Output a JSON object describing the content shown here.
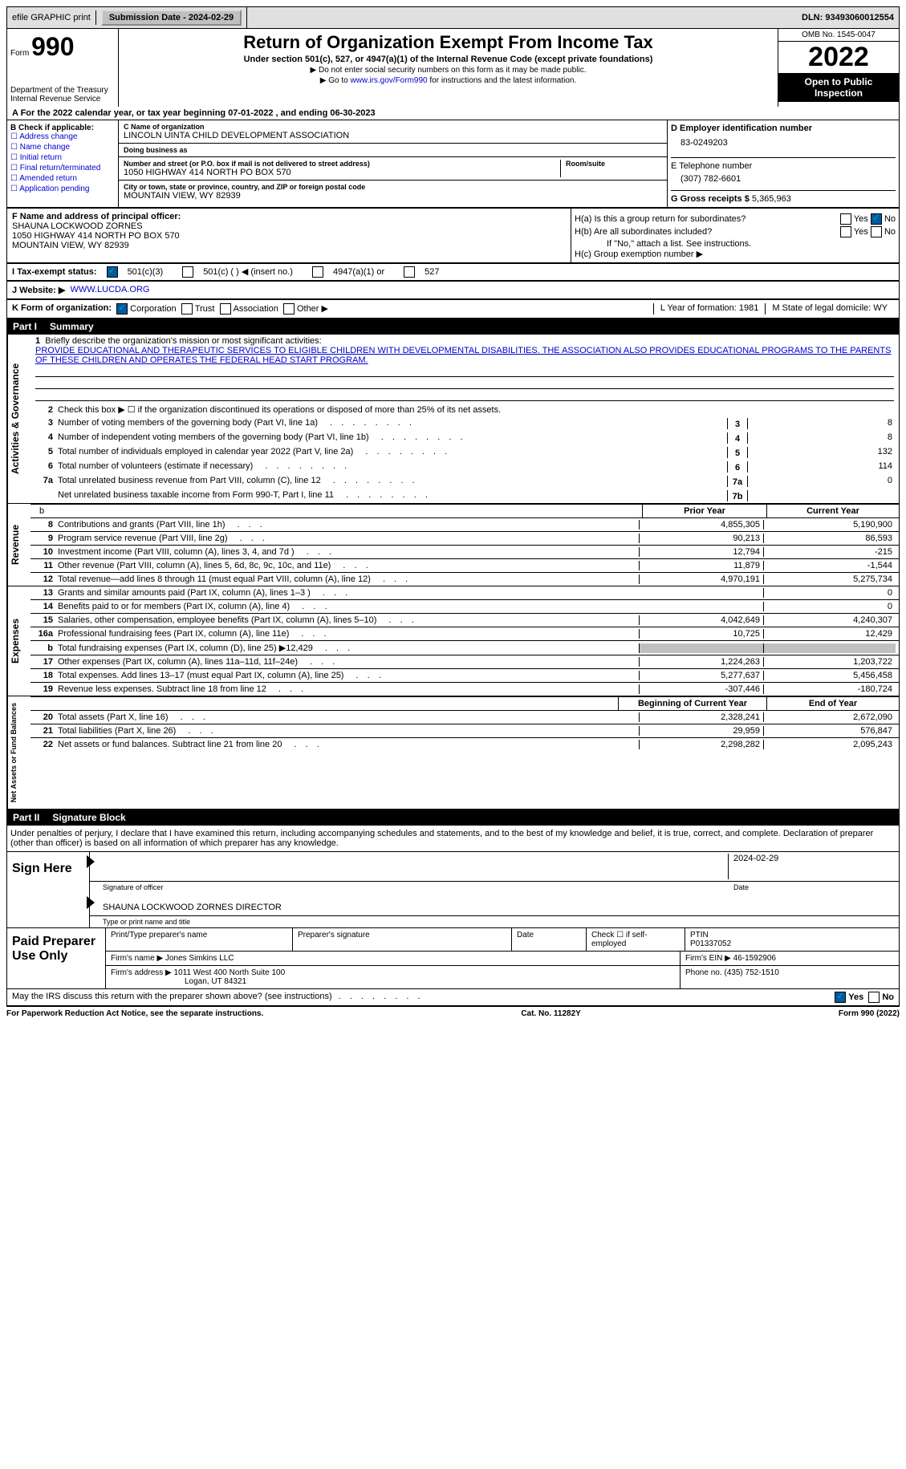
{
  "header": {
    "efile": "efile GRAPHIC print",
    "submission": "Submission Date - 2024-02-29",
    "dln": "DLN: 93493060012554"
  },
  "title": {
    "form_prefix": "Form",
    "form_num": "990",
    "main": "Return of Organization Exempt From Income Tax",
    "sub": "Under section 501(c), 527, or 4947(a)(1) of the Internal Revenue Code (except private foundations)",
    "note1": "▶ Do not enter social security numbers on this form as it may be made public.",
    "note2_pre": "▶ Go to ",
    "note2_link": "www.irs.gov/Form990",
    "note2_post": " for instructions and the latest information.",
    "dept": "Department of the Treasury Internal Revenue Service",
    "omb": "OMB No. 1545-0047",
    "year": "2022",
    "open": "Open to Public Inspection"
  },
  "periodA": "A For the 2022 calendar year, or tax year beginning 07-01-2022     , and ending 06-30-2023",
  "b": {
    "label": "B Check if applicable:",
    "items": [
      "Address change",
      "Name change",
      "Initial return",
      "Final return/terminated",
      "Amended return",
      "Application pending"
    ]
  },
  "c": {
    "name_lbl": "C Name of organization",
    "name": "LINCOLN UINTA CHILD DEVELOPMENT ASSOCIATION",
    "dba_lbl": "Doing business as",
    "addr_lbl": "Number and street (or P.O. box if mail is not delivered to street address)",
    "addr": "1050 HIGHWAY 414 NORTH PO BOX 570",
    "room_lbl": "Room/suite",
    "city_lbl": "City or town, state or province, country, and ZIP or foreign postal code",
    "city": "MOUNTAIN VIEW, WY  82939"
  },
  "d": {
    "ein_lbl": "D Employer identification number",
    "ein": "83-0249203",
    "phone_lbl": "E Telephone number",
    "phone": "(307) 782-6601",
    "gross_lbl": "G Gross receipts $",
    "gross": "5,365,963"
  },
  "f": {
    "lbl": "F Name and address of principal officer:",
    "name": "SHAUNA LOCKWOOD ZORNES",
    "addr1": "1050 HIGHWAY 414 NORTH PO BOX 570",
    "addr2": "MOUNTAIN VIEW, WY  82939"
  },
  "h": {
    "ha": "H(a)  Is this a group return for subordinates?",
    "hb": "H(b)  Are all subordinates included?",
    "hb_note": "If \"No,\" attach a list. See instructions.",
    "hc": "H(c)  Group exemption number ▶",
    "yes": "Yes",
    "no": "No"
  },
  "i": {
    "lbl": "I    Tax-exempt status:",
    "o1": "501(c)(3)",
    "o2": "501(c) (  ) ◀ (insert no.)",
    "o3": "4947(a)(1) or",
    "o4": "527"
  },
  "j": {
    "lbl": "J   Website: ▶",
    "val": "WWW.LUCDA.ORG"
  },
  "k": {
    "lbl": "K Form of organization:",
    "o1": "Corporation",
    "o2": "Trust",
    "o3": "Association",
    "o4": "Other ▶",
    "l": "L Year of formation: 1981",
    "m": "M State of legal domicile: WY"
  },
  "part1": {
    "num": "Part I",
    "title": "Summary"
  },
  "summary": {
    "l1": "Briefly describe the organization's mission or most significant activities:",
    "mission": "PROVIDE EDUCATIONAL AND THERAPEUTIC SERVICES TO ELIGIBLE CHILDREN WITH DEVELOPMENTAL DISABILITIES. THE ASSOCIATION ALSO PROVIDES EDUCATIONAL PROGRAMS TO THE PARENTS OF THESE CHILDREN AND OPERATES THE FEDERAL HEAD START PROGRAM.",
    "l2": "Check this box ▶ ☐  if the organization discontinued its operations or disposed of more than 25% of its net assets.",
    "rows_simple": [
      {
        "n": "3",
        "t": "Number of voting members of the governing body (Part VI, line 1a)",
        "box": "3",
        "v": "8"
      },
      {
        "n": "4",
        "t": "Number of independent voting members of the governing body (Part VI, line 1b)",
        "box": "4",
        "v": "8"
      },
      {
        "n": "5",
        "t": "Total number of individuals employed in calendar year 2022 (Part V, line 2a)",
        "box": "5",
        "v": "132"
      },
      {
        "n": "6",
        "t": "Total number of volunteers (estimate if necessary)",
        "box": "6",
        "v": "114"
      },
      {
        "n": "7a",
        "t": "Total unrelated business revenue from Part VIII, column (C), line 12",
        "box": "7a",
        "v": "0"
      },
      {
        "n": "",
        "t": "Net unrelated business taxable income from Form 990-T, Part I, line 11",
        "box": "7b",
        "v": ""
      }
    ],
    "prior_hdr": "Prior Year",
    "curr_hdr": "Current Year",
    "beg_hdr": "Beginning of Current Year",
    "end_hdr": "End of Year",
    "rev": [
      {
        "n": "8",
        "t": "Contributions and grants (Part VIII, line 1h)",
        "p": "4,855,305",
        "c": "5,190,900"
      },
      {
        "n": "9",
        "t": "Program service revenue (Part VIII, line 2g)",
        "p": "90,213",
        "c": "86,593"
      },
      {
        "n": "10",
        "t": "Investment income (Part VIII, column (A), lines 3, 4, and 7d )",
        "p": "12,794",
        "c": "-215"
      },
      {
        "n": "11",
        "t": "Other revenue (Part VIII, column (A), lines 5, 6d, 8c, 9c, 10c, and 11e)",
        "p": "11,879",
        "c": "-1,544"
      },
      {
        "n": "12",
        "t": "Total revenue—add lines 8 through 11 (must equal Part VIII, column (A), line 12)",
        "p": "4,970,191",
        "c": "5,275,734"
      }
    ],
    "exp": [
      {
        "n": "13",
        "t": "Grants and similar amounts paid (Part IX, column (A), lines 1–3 )",
        "p": "",
        "c": "0"
      },
      {
        "n": "14",
        "t": "Benefits paid to or for members (Part IX, column (A), line 4)",
        "p": "",
        "c": "0"
      },
      {
        "n": "15",
        "t": "Salaries, other compensation, employee benefits (Part IX, column (A), lines 5–10)",
        "p": "4,042,649",
        "c": "4,240,307"
      },
      {
        "n": "16a",
        "t": "Professional fundraising fees (Part IX, column (A), line 11e)",
        "p": "10,725",
        "c": "12,429"
      },
      {
        "n": "b",
        "t": "Total fundraising expenses (Part IX, column (D), line 25) ▶12,429",
        "p": "SHADE",
        "c": "SHADE"
      },
      {
        "n": "17",
        "t": "Other expenses (Part IX, column (A), lines 11a–11d, 11f–24e)",
        "p": "1,224,263",
        "c": "1,203,722"
      },
      {
        "n": "18",
        "t": "Total expenses. Add lines 13–17 (must equal Part IX, column (A), line 25)",
        "p": "5,277,637",
        "c": "5,456,458"
      },
      {
        "n": "19",
        "t": "Revenue less expenses. Subtract line 18 from line 12",
        "p": "-307,446",
        "c": "-180,724"
      }
    ],
    "na": [
      {
        "n": "20",
        "t": "Total assets (Part X, line 16)",
        "p": "2,328,241",
        "c": "2,672,090"
      },
      {
        "n": "21",
        "t": "Total liabilities (Part X, line 26)",
        "p": "29,959",
        "c": "576,847"
      },
      {
        "n": "22",
        "t": "Net assets or fund balances. Subtract line 21 from line 20",
        "p": "2,298,282",
        "c": "2,095,243"
      }
    ],
    "labels": {
      "ag": "Activities & Governance",
      "rev": "Revenue",
      "exp": "Expenses",
      "na": "Net Assets or Fund Balances"
    }
  },
  "part2": {
    "num": "Part II",
    "title": "Signature Block"
  },
  "sig": {
    "decl": "Under penalties of perjury, I declare that I have examined this return, including accompanying schedules and statements, and to the best of my knowledge and belief, it is true, correct, and complete. Declaration of preparer (other than officer) is based on all information of which preparer has any knowledge.",
    "sign_here": "Sign Here",
    "sig_officer": "Signature of officer",
    "date": "Date",
    "date_val": "2024-02-29",
    "name_title": "SHAUNA LOCKWOOD ZORNES  DIRECTOR",
    "type_name": "Type or print name and title"
  },
  "prep": {
    "title": "Paid Preparer Use Only",
    "h1": "Print/Type preparer's name",
    "h2": "Preparer's signature",
    "h3": "Date",
    "h4": "Check ☐ if self-employed",
    "h5": "PTIN",
    "ptin": "P01337052",
    "firm_lbl": "Firm's name    ▶",
    "firm": "Jones Simkins LLC",
    "ein_lbl": "Firm's EIN ▶",
    "ein": "46-1592906",
    "addr_lbl": "Firm's address ▶",
    "addr1": "1011 West 400 North Suite 100",
    "addr2": "Logan, UT  84321",
    "phone_lbl": "Phone no.",
    "phone": "(435) 752-1510"
  },
  "discuss": "May the IRS discuss this return with the preparer shown above? (see instructions)",
  "footer": {
    "l": "For Paperwork Reduction Act Notice, see the separate instructions.",
    "c": "Cat. No. 11282Y",
    "r": "Form 990 (2022)"
  },
  "dots": "  .    .    .    .    .    .    .    ."
}
